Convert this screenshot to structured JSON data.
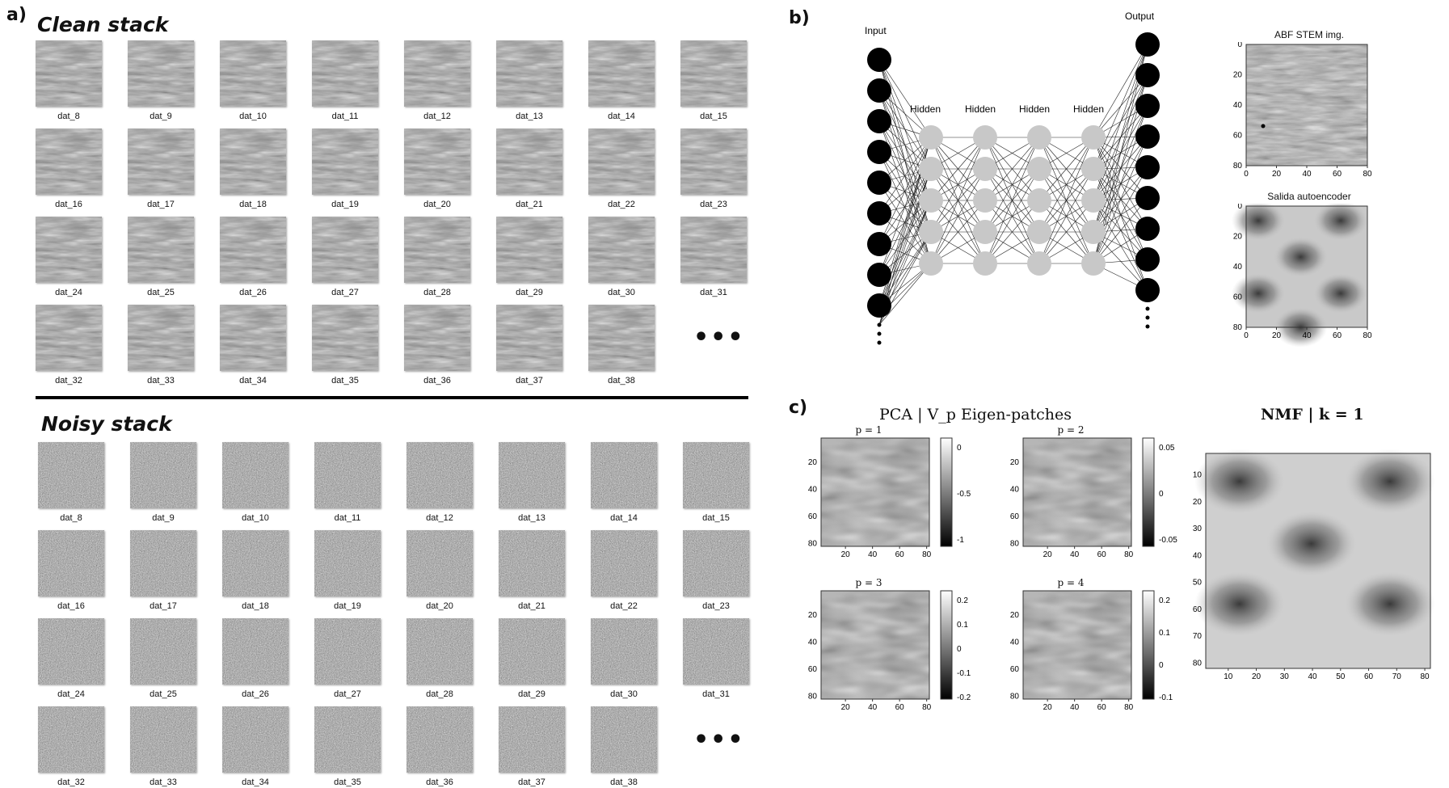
{
  "panel_a": {
    "label": "a)",
    "clean_title": "Clean stack",
    "noisy_title": "Noisy stack",
    "clean_tiles": [
      "dat_8",
      "dat_9",
      "dat_10",
      "dat_11",
      "dat_12",
      "dat_13",
      "dat_14",
      "dat_15",
      "dat_16",
      "dat_17",
      "dat_18",
      "dat_19",
      "dat_20",
      "dat_21",
      "dat_22",
      "dat_23",
      "dat_24",
      "dat_25",
      "dat_26",
      "dat_27",
      "dat_28",
      "dat_29",
      "dat_30",
      "dat_31",
      "dat_32",
      "dat_33",
      "dat_34",
      "dat_35",
      "dat_36",
      "dat_37",
      "dat_38"
    ],
    "noisy_tiles": [
      "dat_8",
      "dat_9",
      "dat_10",
      "dat_11",
      "dat_12",
      "dat_13",
      "dat_14",
      "dat_15",
      "dat_16",
      "dat_17",
      "dat_18",
      "dat_19",
      "dat_20",
      "dat_21",
      "dat_22",
      "dat_23",
      "dat_24",
      "dat_25",
      "dat_26",
      "dat_27",
      "dat_28",
      "dat_29",
      "dat_30",
      "dat_31",
      "dat_32",
      "dat_33",
      "dat_34",
      "dat_35",
      "dat_36",
      "dat_37",
      "dat_38"
    ],
    "ellipsis": "•••"
  },
  "panel_b": {
    "label": "b)",
    "input_label": "Input",
    "output_label": "Output",
    "hidden_labels": [
      "Hidden",
      "Hidden",
      "Hidden",
      "Hidden"
    ],
    "abf_title": "ABF STEM img.",
    "auto_title": "Salida autoencoder",
    "axis_ticks": [
      "0",
      "20",
      "40",
      "60",
      "80"
    ],
    "colors": {
      "io_node": "#000000",
      "hidden_node": "#c8c8c8"
    }
  },
  "panel_c": {
    "label": "c)",
    "pca_title": "PCA | V_p Eigen-patches",
    "nmf_title": "NMF | k = 1",
    "pca_plots": [
      {
        "title": "p = 1",
        "colorbar_ticks": [
          "0",
          "-0.5",
          "-1"
        ]
      },
      {
        "title": "p = 2",
        "colorbar_ticks": [
          "0.05",
          "0",
          "-0.05"
        ]
      },
      {
        "title": "p = 3",
        "colorbar_ticks": [
          "0.2",
          "0.1",
          "0",
          "-0.1",
          "-0.2"
        ]
      },
      {
        "title": "p = 4",
        "colorbar_ticks": [
          "0.2",
          "0.1",
          "0",
          "-0.1"
        ]
      }
    ],
    "pca_y_ticks": [
      "20",
      "40",
      "60",
      "80"
    ],
    "pca_x_ticks": [
      "20",
      "40",
      "60",
      "80"
    ],
    "nmf_y_ticks": [
      "10",
      "20",
      "30",
      "40",
      "50",
      "60",
      "70",
      "80"
    ],
    "nmf_x_ticks": [
      "10",
      "20",
      "30",
      "40",
      "50",
      "60",
      "70",
      "80"
    ]
  }
}
